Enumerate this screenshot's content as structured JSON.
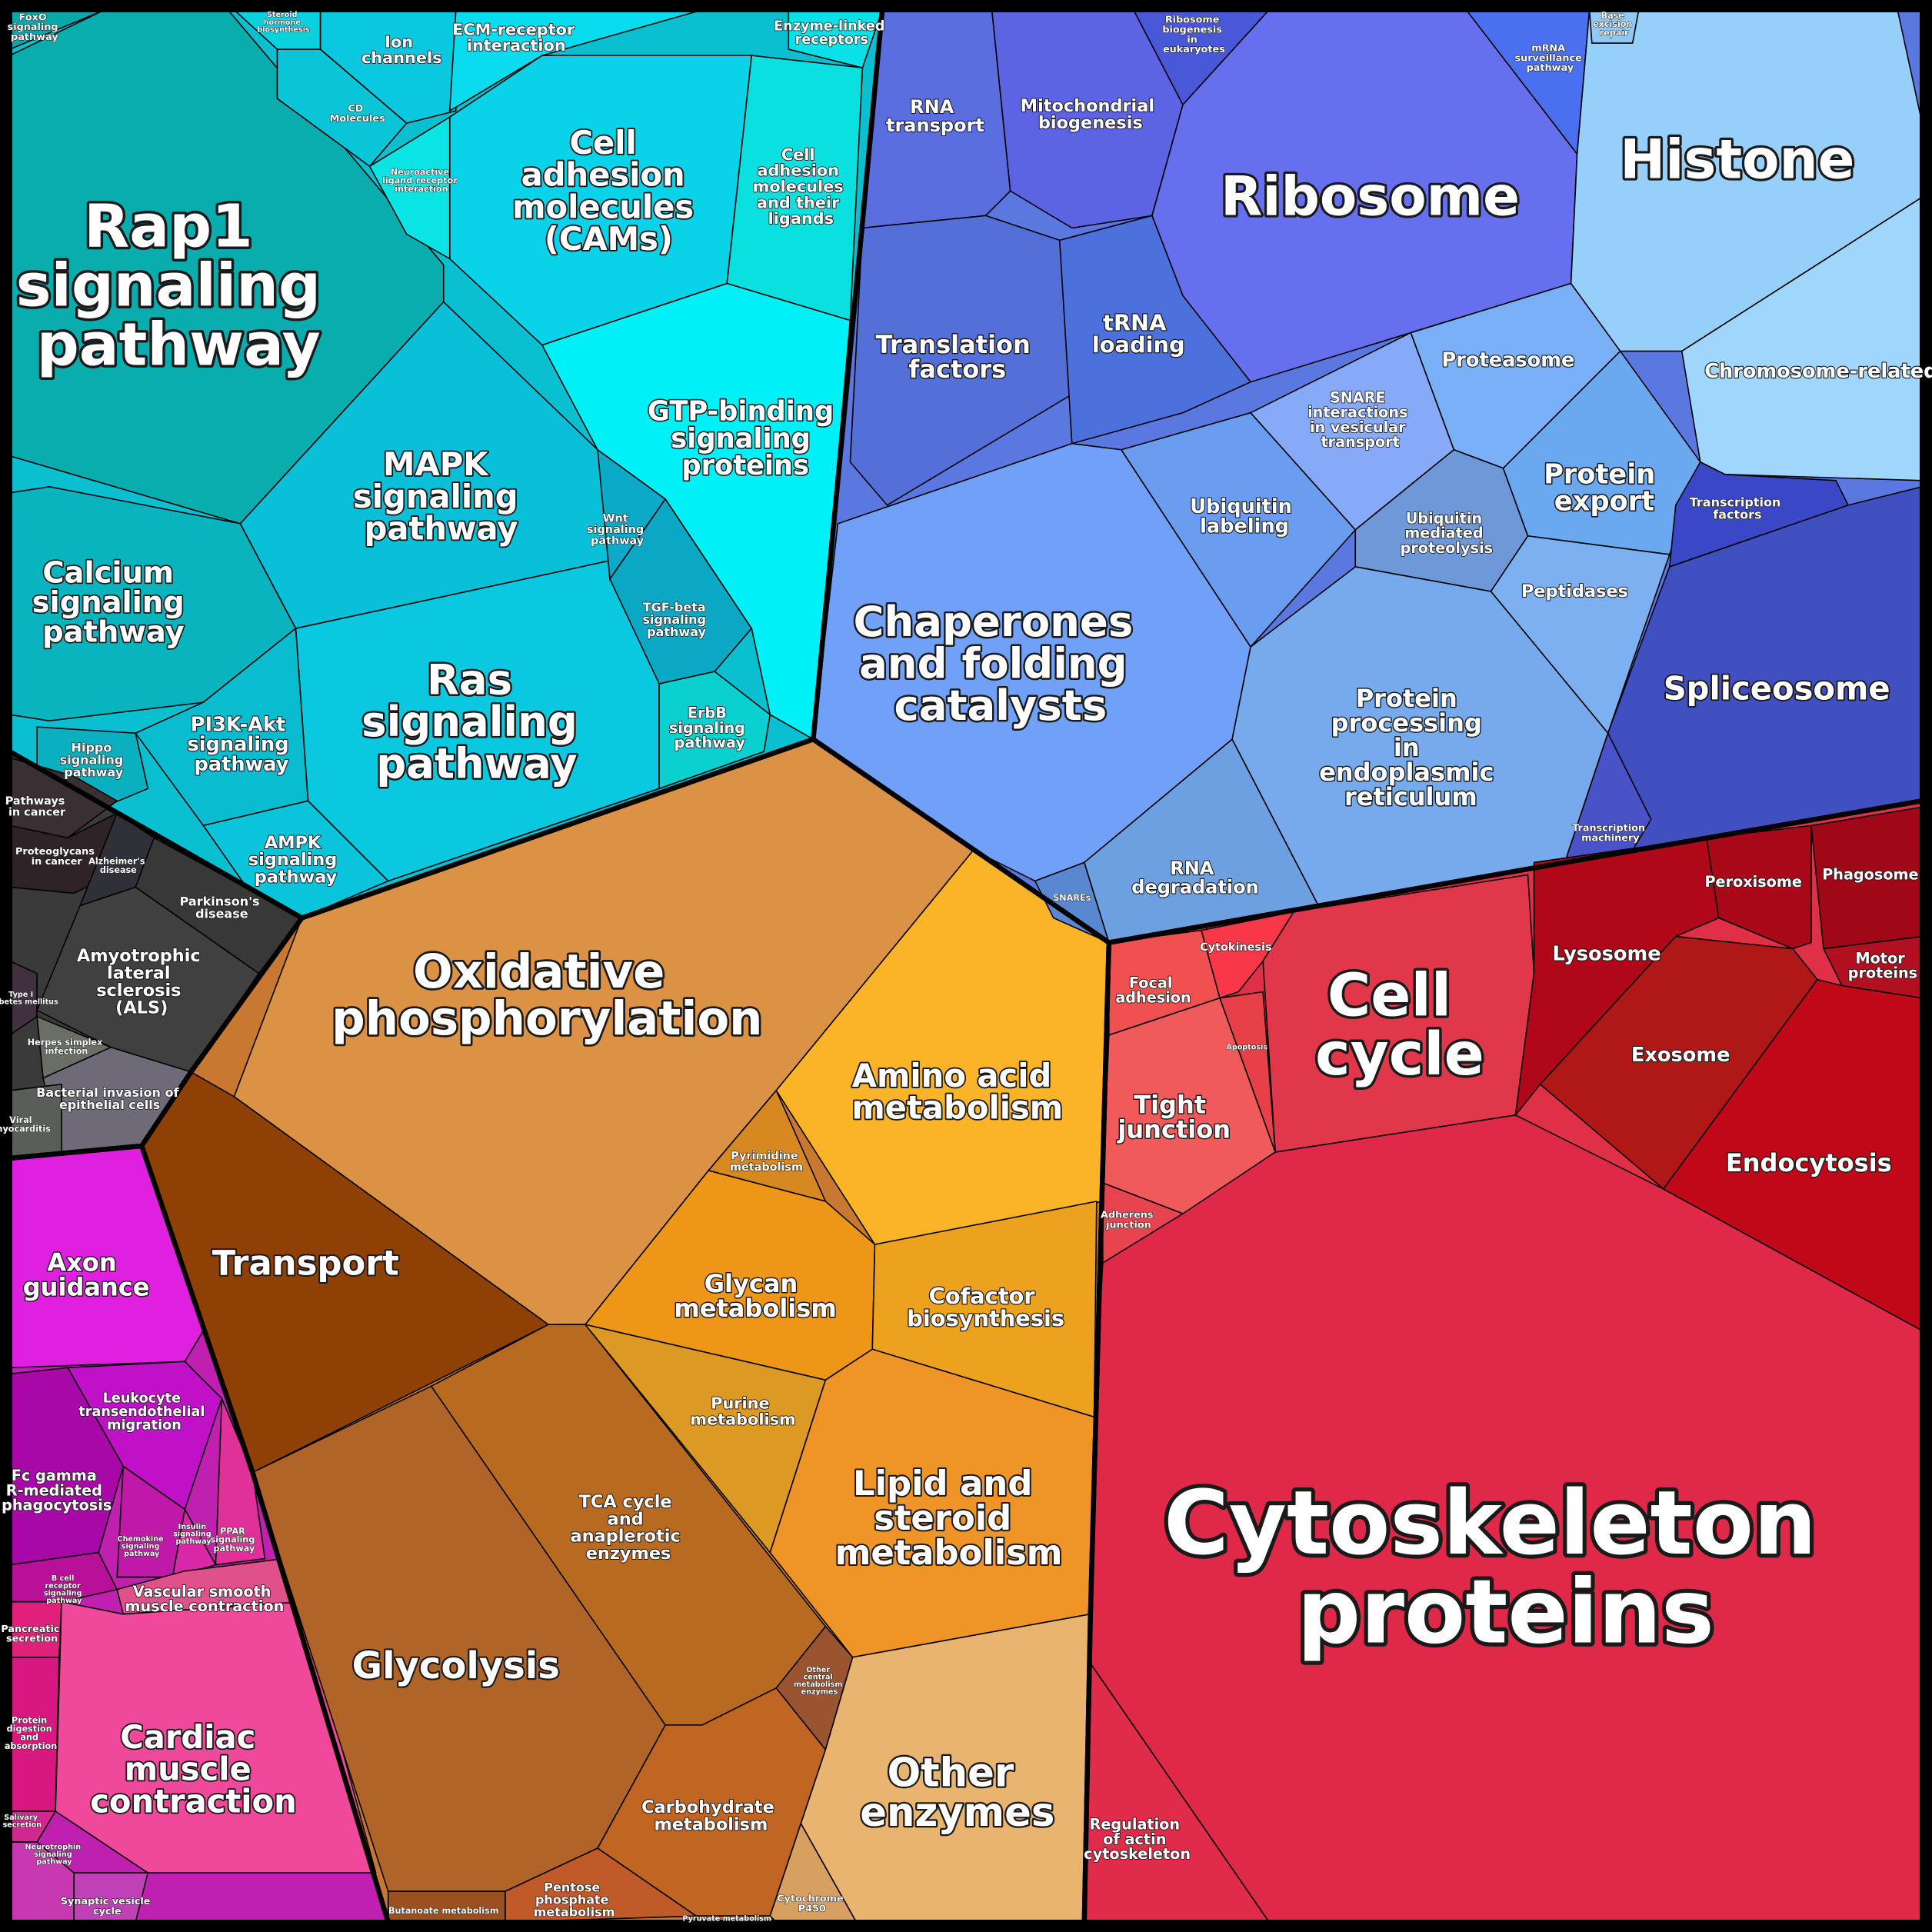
{
  "cells": [
    {
      "label": "FoxO signaling pathway",
      "color": "#0aa8aa"
    },
    {
      "label": "Rap1 signaling pathway",
      "color": "#0aadad"
    },
    {
      "label": "Calcium signaling pathway",
      "color": "#0ab4be"
    },
    {
      "label": "MAPK signaling pathway",
      "color": "#0ac0d8"
    },
    {
      "label": "Ras signaling pathway",
      "color": "#0ac8e0"
    },
    {
      "label": "PI3K-Akt signaling pathway",
      "color": "#0abcd0"
    },
    {
      "label": "Hippo signaling pathway",
      "color": "#0ab0c0"
    },
    {
      "label": "AMPK signaling pathway",
      "color": "#0ac4dc"
    },
    {
      "label": "Wnt signaling pathway",
      "color": "#0aaac8"
    },
    {
      "label": "TGF-beta signaling pathway",
      "color": "#0aa8c4"
    },
    {
      "label": "ErbB signaling pathway",
      "color": "#0ad0d0"
    },
    {
      "label": "GTP-binding signaling proteins",
      "color": "#00f0f8"
    },
    {
      "label": "Cell adhesion molecules (CAMs)",
      "color": "#0ad2e8"
    },
    {
      "label": "Cell adhesion molecules and their ligands",
      "color": "#0ae0e0"
    },
    {
      "label": "Ion channels",
      "color": "#0ac8e0"
    },
    {
      "label": "ECM-receptor interaction",
      "color": "#0adcf0"
    },
    {
      "label": "Enzyme-linked receptors",
      "color": "#0ae0e8"
    },
    {
      "label": "CD Molecules",
      "color": "#0ac4d8"
    },
    {
      "label": "Neuroactive ligand-receptor interaction",
      "color": "#0ae4e4"
    },
    {
      "label": "Steroid hormone biosynthesis",
      "color": "#0ad0e0"
    },
    {
      "label": "Pathways in cancer",
      "color": "#3a3034"
    },
    {
      "label": "Proteoglycans in cancer",
      "color": "#2e2428"
    },
    {
      "label": "Alzheimer's disease",
      "color": "#303038"
    },
    {
      "label": "Parkinson's disease",
      "color": "#383838"
    },
    {
      "label": "Amyotrophic lateral sclerosis (ALS)",
      "color": "#404040"
    },
    {
      "label": "Herpes simplex infection",
      "color": "#6a6e66"
    },
    {
      "label": "Bacterial invasion of epithelial cells",
      "color": "#6e6a78"
    },
    {
      "label": "Type I diabetes mellitus",
      "color": "#403040"
    },
    {
      "label": "Viral myocarditis",
      "color": "#5a5e58"
    },
    {
      "label": "Axon guidance",
      "color": "#e020e0"
    },
    {
      "label": "Leukocyte transendothelial migration",
      "color": "#c010c8"
    },
    {
      "label": "Fc gamma R-mediated phagocytosis",
      "color": "#a808a8"
    },
    {
      "label": "PPAR signaling pathway",
      "color": "#e0309a"
    },
    {
      "label": "Insulin signaling pathway",
      "color": "#d828a8"
    },
    {
      "label": "Chemokine signaling pathway",
      "color": "#c018a8"
    },
    {
      "label": "B cell receptor signaling pathway",
      "color": "#b81098"
    },
    {
      "label": "Vascular smooth muscle contraction",
      "color": "#e0508a"
    },
    {
      "label": "Pancreatic secretion",
      "color": "#e0207a"
    },
    {
      "label": "Protein digestion and absorption",
      "color": "#d81880"
    },
    {
      "label": "Cardiac muscle contraction",
      "color": "#f0489a"
    },
    {
      "label": "Salivary secretion",
      "color": "#d02890"
    },
    {
      "label": "Neurotrophin signaling pathway",
      "color": "#c838b0"
    },
    {
      "label": "Synaptic vesicle cycle",
      "color": "#c040b8"
    },
    {
      "label": "Oxidative phosphorylation",
      "color": "#dc9244"
    },
    {
      "label": "Transport",
      "color": "#8f4004"
    },
    {
      "label": "Glycolysis",
      "color": "#b06428"
    },
    {
      "label": "TCA cycle and anaplerotic enzymes",
      "color": "#b86a20"
    },
    {
      "label": "Carbohydrate metabolism",
      "color": "#c06622"
    },
    {
      "label": "Pentose phosphate metabolism",
      "color": "#c05a28"
    },
    {
      "label": "Butanoate metabolism",
      "color": "#9a5020"
    },
    {
      "label": "Other central metabolism enzymes",
      "color": "#9a5530"
    },
    {
      "label": "Amino acid metabolism",
      "color": "#fbb428"
    },
    {
      "label": "Pyrimidine metabolism",
      "color": "#d88820"
    },
    {
      "label": "Glycan metabolism",
      "color": "#ee9618"
    },
    {
      "label": "Cofactor biosynthesis",
      "color": "#eca21e"
    },
    {
      "label": "Purine metabolism",
      "color": "#dc9a24"
    },
    {
      "label": "Lipid and steroid metabolism",
      "color": "#ef9426"
    },
    {
      "label": "Other enzymes",
      "color": "#e8b470"
    },
    {
      "label": "Cytochrome P450",
      "color": "#d8a060"
    },
    {
      "label": "Pyruvate metabolism",
      "color": "#c87030"
    },
    {
      "label": "RNA transport",
      "color": "#5a6ee0"
    },
    {
      "label": "Mitochondrial biogenesis",
      "color": "#5c64e4"
    },
    {
      "label": "Ribosome biogenesis in eukaryotes",
      "color": "#4858d8"
    },
    {
      "label": "Ribosome",
      "color": "#6670ee"
    },
    {
      "label": "mRNA surveillance pathway",
      "color": "#4a70f0"
    },
    {
      "label": "Translation factors",
      "color": "#5470d8"
    },
    {
      "label": "tRNA loading",
      "color": "#4c70dc"
    },
    {
      "label": "Chaperones and folding catalysts",
      "color": "#70a0f8"
    },
    {
      "label": "Ubiquitin labeling",
      "color": "#6a9cf0"
    },
    {
      "label": "SNARE interactions in vesicular transport",
      "color": "#86aaf8"
    },
    {
      "label": "Proteasome",
      "color": "#7ab0f8"
    },
    {
      "label": "Ubiquitin mediated proteolysis",
      "color": "#6e98d8"
    },
    {
      "label": "Protein export",
      "color": "#6aa8f0"
    },
    {
      "label": "Peptidases",
      "color": "#7cb0f0"
    },
    {
      "label": "Protein processing in endoplasmic reticulum",
      "color": "#76aaec"
    },
    {
      "label": "RNA degradation",
      "color": "#6ca0e0"
    },
    {
      "label": "SNAREs",
      "color": "#5a88d0"
    },
    {
      "label": "Histone",
      "color": "#96d0fa"
    },
    {
      "label": "Chromosome-related",
      "color": "#a0d6fc"
    },
    {
      "label": "Transcription factors",
      "color": "#3a48c8"
    },
    {
      "label": "Spliceosome",
      "color": "#4050c0"
    },
    {
      "label": "Transcription machinery",
      "color": "#4a52c8"
    },
    {
      "label": "Base excision repair",
      "color": "#90c8f8"
    },
    {
      "label": "Cytoskeleton proteins",
      "color": "#e02848"
    },
    {
      "label": "Regulation of actin cytoskeleton",
      "color": "#e02c4a"
    },
    {
      "label": "Cell cycle",
      "color": "#e0384a"
    },
    {
      "label": "Tight junction",
      "color": "#f05a5a"
    },
    {
      "label": "Focal adhesion",
      "color": "#f05050"
    },
    {
      "label": "Cytokinesis",
      "color": "#f83848"
    },
    {
      "label": "Apoptosis",
      "color": "#e84048"
    },
    {
      "label": "Adherens junction",
      "color": "#e84450"
    },
    {
      "label": "Lysosome",
      "color": "#b00818"
    },
    {
      "label": "Peroxisome",
      "color": "#a80818"
    },
    {
      "label": "Phagosome",
      "color": "#a00818"
    },
    {
      "label": "Motor proteins",
      "color": "#b01020"
    },
    {
      "label": "Exosome",
      "color": "#b01818"
    },
    {
      "label": "Endocytosis",
      "color": "#c00818"
    }
  ]
}
